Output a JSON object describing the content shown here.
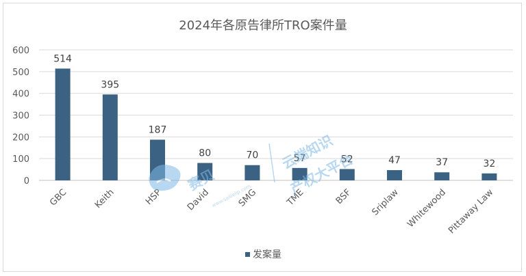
{
  "chart_data": {
    "type": "bar",
    "title": "2024年各原告律所TRO案件量",
    "categories": [
      "GBC",
      "Keith",
      "HSP",
      "David",
      "SMG",
      "TME",
      "BSF",
      "Sriplaw",
      "Whitewood",
      "Pittaway Law"
    ],
    "series": [
      {
        "name": "发案量",
        "values": [
          514,
          395,
          187,
          80,
          70,
          57,
          52,
          47,
          37,
          32
        ],
        "color": "#3b6282"
      }
    ],
    "ylim": [
      0,
      600
    ],
    "yticks": [
      0,
      100,
      200,
      300,
      400,
      500,
      600
    ],
    "grid": true,
    "legend_position": "bottom"
  },
  "watermark": {
    "brand": "赛贝",
    "slogan_line1": "云端知识",
    "slogan_line2": "产权大平台",
    "url": "www.saibeiip.com",
    "color": "#7fb8e6"
  }
}
